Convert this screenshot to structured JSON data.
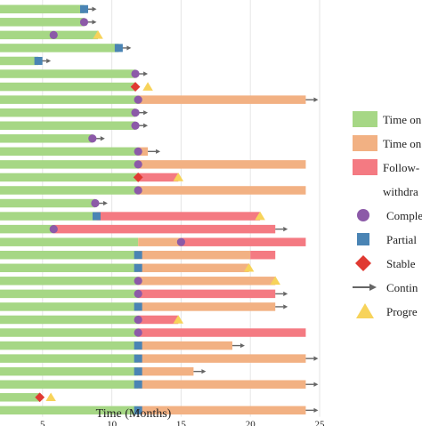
{
  "chart_data": {
    "type": "swimmer",
    "xlabel": "Time (Months)",
    "xlim": [
      0,
      25
    ],
    "x_ticks": [
      5,
      10,
      15,
      20,
      25
    ],
    "grid": true,
    "legend_position": "right",
    "colors": {
      "on_treatment": "#a6d785",
      "off_treatment": "#f2b183",
      "followup": "#f47a82",
      "complete": "#8c5aa8",
      "partial": "#4a84b4",
      "stable": "#e03a32",
      "continue": "#666666",
      "progression": "#f7d35a"
    },
    "legend": [
      {
        "key": "on_treatment",
        "label": "Time on",
        "shape": "rect"
      },
      {
        "key": "off_treatment",
        "label": "Time on",
        "shape": "rect"
      },
      {
        "key": "followup",
        "label": "Follow-",
        "shape": "rect"
      },
      {
        "key": "followup_cont",
        "label": "withdra",
        "shape": "none"
      },
      {
        "key": "complete",
        "label": "Comple",
        "shape": "circle"
      },
      {
        "key": "partial",
        "label": "Partial",
        "shape": "square"
      },
      {
        "key": "stable",
        "label": "Stable",
        "shape": "diamond"
      },
      {
        "key": "continue",
        "label": "Contin",
        "shape": "arrow"
      },
      {
        "key": "progression",
        "label": "Progre",
        "shape": "triangle"
      }
    ],
    "patients": [
      {
        "green": 8.0,
        "partial": 8.0,
        "continue": true
      },
      {
        "green": 8.0,
        "complete": 8.0,
        "continue": true
      },
      {
        "green": 9.0,
        "complete": 5.8,
        "progression": 9.0
      },
      {
        "green": 10.5,
        "partial": 10.5,
        "continue": true
      },
      {
        "green": 4.7,
        "partial": 4.7,
        "continue": true
      },
      {
        "green": 11.7,
        "complete": 11.7,
        "continue": true
      },
      {
        "green": 11.7,
        "stable": 11.7,
        "progression": 12.6
      },
      {
        "green": 11.9,
        "off_end": 24.0,
        "complete": 11.9,
        "continue": true
      },
      {
        "green": 11.7,
        "complete": 11.7,
        "continue": true
      },
      {
        "green": 11.7,
        "complete": 11.7,
        "continue": true
      },
      {
        "green": 8.6,
        "complete": 8.6,
        "continue": true
      },
      {
        "green": 11.9,
        "off_end": 12.6,
        "complete": 11.9,
        "continue": true
      },
      {
        "green": 11.9,
        "off_end": 24.0,
        "complete": 11.9
      },
      {
        "green": 11.9,
        "follow_end": 14.8,
        "stable": 11.9,
        "progression": 14.8
      },
      {
        "green": 11.9,
        "off_end": 24.0,
        "complete": 11.9
      },
      {
        "green": 8.8,
        "complete": 8.8,
        "continue": true
      },
      {
        "green": 8.9,
        "partial": 8.9,
        "follow_end": 20.7,
        "progression": 20.7
      },
      {
        "green": 5.8,
        "complete": 5.8,
        "follow_end": 21.8,
        "continue": true
      },
      {
        "green": 11.9,
        "off_end": 15.0,
        "follow_end": 24.0,
        "complete": 15.0
      },
      {
        "green": 11.9,
        "partial": 11.9,
        "off_end": 20.0,
        "follow_end": 21.8
      },
      {
        "green": 11.9,
        "partial": 11.9,
        "off_end": 19.9,
        "progression": 19.9
      },
      {
        "green": 11.9,
        "complete": 11.9,
        "off_end": 21.8,
        "progression": 21.8
      },
      {
        "green": 11.9,
        "complete": 11.9,
        "follow_end": 21.8,
        "continue": true
      },
      {
        "green": 11.9,
        "partial": 11.9,
        "off_end": 21.8,
        "continue": true
      },
      {
        "green": 11.9,
        "complete": 11.9,
        "follow_end": 14.8,
        "progression": 14.8
      },
      {
        "green": 11.9,
        "complete": 11.9,
        "follow_end": 24.0
      },
      {
        "green": 11.9,
        "partial": 11.9,
        "off_end": 18.7,
        "continue": true
      },
      {
        "green": 11.9,
        "partial": 11.9,
        "off_end": 24.0,
        "continue": true
      },
      {
        "green": 11.9,
        "partial": 11.9,
        "off_end": 15.9,
        "continue": true
      },
      {
        "green": 11.9,
        "partial": 11.9,
        "off_end": 24.0,
        "continue": true
      },
      {
        "green": 4.8,
        "stable": 4.8,
        "progression": 5.6
      },
      {
        "green": 11.9,
        "partial": 11.9,
        "off_end": 24.0,
        "continue": true
      }
    ]
  }
}
